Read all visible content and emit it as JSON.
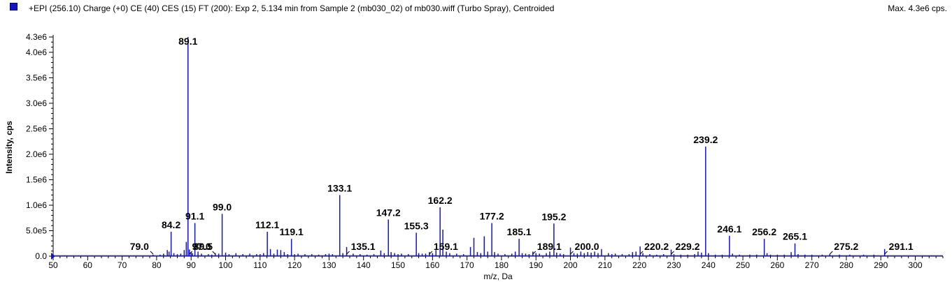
{
  "header": {
    "title": "+EPI (256.10) Charge (+0) CE (40) CES (15) FT (200): Exp 2, 5.134 min from Sample 2 (mb030_02) of mb030.wiff (Turbo Spray), Centroided",
    "max_label": "Max. 4.3e6 cps."
  },
  "colors": {
    "trace": "#1414c8",
    "axis": "#000000",
    "marker": "#1414c8"
  },
  "chart_data": {
    "type": "bar",
    "xlabel": "m/z, Da",
    "ylabel": "Intensity, cps",
    "xlim": [
      50,
      308
    ],
    "ylim": [
      0,
      4300000
    ],
    "grid": false,
    "x_ticks": [
      50,
      60,
      70,
      80,
      90,
      100,
      110,
      120,
      130,
      140,
      150,
      160,
      170,
      180,
      190,
      200,
      210,
      220,
      230,
      240,
      250,
      260,
      270,
      280,
      290,
      300
    ],
    "y_ticks": [
      {
        "value": 0,
        "label": "0.0"
      },
      {
        "value": 500000,
        "label": "5.0e5"
      },
      {
        "value": 1000000,
        "label": "1.0e6"
      },
      {
        "value": 1500000,
        "label": "1.5e6"
      },
      {
        "value": 2000000,
        "label": "2.0e6"
      },
      {
        "value": 2500000,
        "label": "2.5e6"
      },
      {
        "value": 3000000,
        "label": "3.0e6"
      },
      {
        "value": 3500000,
        "label": "3.5e6"
      },
      {
        "value": 4000000,
        "label": "4.0e6"
      },
      {
        "value": 4300000,
        "label": "4.3e6"
      }
    ],
    "peaks": [
      {
        "mz": 79.0,
        "intensity": 30000,
        "label": "79.0"
      },
      {
        "mz": 81.0,
        "intensity": 30000
      },
      {
        "mz": 82.0,
        "intensity": 50000
      },
      {
        "mz": 83.1,
        "intensity": 120000
      },
      {
        "mz": 83.6,
        "intensity": 90000
      },
      {
        "mz": 84.2,
        "intensity": 480000,
        "label": "84.2"
      },
      {
        "mz": 85.0,
        "intensity": 60000
      },
      {
        "mz": 86.0,
        "intensity": 40000
      },
      {
        "mz": 87.0,
        "intensity": 50000
      },
      {
        "mz": 88.0,
        "intensity": 120000
      },
      {
        "mz": 88.6,
        "intensity": 280000
      },
      {
        "mz": 89.1,
        "intensity": 4300000,
        "label": "89.1"
      },
      {
        "mz": 89.5,
        "intensity": 130000,
        "label": "89.5"
      },
      {
        "mz": 90.0,
        "intensity": 80000
      },
      {
        "mz": 90.4,
        "intensity": 60000
      },
      {
        "mz": 91.1,
        "intensity": 650000,
        "label": "91.1"
      },
      {
        "mz": 92.0,
        "intensity": 90000
      },
      {
        "mz": 93.0,
        "intensity": 50000
      },
      {
        "mz": 95.0,
        "intensity": 40000
      },
      {
        "mz": 96.0,
        "intensity": 30000
      },
      {
        "mz": 97.0,
        "intensity": 60000,
        "label": "97.0"
      },
      {
        "mz": 98.0,
        "intensity": 50000
      },
      {
        "mz": 99.0,
        "intensity": 830000,
        "label": "99.0"
      },
      {
        "mz": 100.0,
        "intensity": 70000
      },
      {
        "mz": 101.0,
        "intensity": 40000
      },
      {
        "mz": 103.0,
        "intensity": 60000
      },
      {
        "mz": 105.0,
        "intensity": 40000
      },
      {
        "mz": 107.0,
        "intensity": 50000
      },
      {
        "mz": 109.0,
        "intensity": 40000
      },
      {
        "mz": 110.0,
        "intensity": 40000
      },
      {
        "mz": 111.0,
        "intensity": 60000
      },
      {
        "mz": 112.1,
        "intensity": 480000,
        "label": "112.1"
      },
      {
        "mz": 113.0,
        "intensity": 140000
      },
      {
        "mz": 114.0,
        "intensity": 50000
      },
      {
        "mz": 115.0,
        "intensity": 130000
      },
      {
        "mz": 116.0,
        "intensity": 120000
      },
      {
        "mz": 117.0,
        "intensity": 80000
      },
      {
        "mz": 118.0,
        "intensity": 40000
      },
      {
        "mz": 119.1,
        "intensity": 340000,
        "label": "119.1"
      },
      {
        "mz": 120.0,
        "intensity": 40000
      },
      {
        "mz": 121.0,
        "intensity": 50000
      },
      {
        "mz": 123.0,
        "intensity": 40000
      },
      {
        "mz": 125.0,
        "intensity": 40000
      },
      {
        "mz": 127.0,
        "intensity": 30000
      },
      {
        "mz": 129.0,
        "intensity": 40000
      },
      {
        "mz": 130.0,
        "intensity": 50000
      },
      {
        "mz": 131.0,
        "intensity": 40000
      },
      {
        "mz": 133.1,
        "intensity": 1200000,
        "label": "133.1"
      },
      {
        "mz": 134.0,
        "intensity": 60000
      },
      {
        "mz": 135.1,
        "intensity": 180000,
        "label": "135.1"
      },
      {
        "mz": 137.0,
        "intensity": 50000
      },
      {
        "mz": 139.0,
        "intensity": 40000
      },
      {
        "mz": 141.0,
        "intensity": 30000
      },
      {
        "mz": 143.0,
        "intensity": 40000
      },
      {
        "mz": 145.0,
        "intensity": 110000
      },
      {
        "mz": 146.0,
        "intensity": 60000
      },
      {
        "mz": 147.2,
        "intensity": 720000,
        "label": "147.2"
      },
      {
        "mz": 148.0,
        "intensity": 80000
      },
      {
        "mz": 149.0,
        "intensity": 60000
      },
      {
        "mz": 150.0,
        "intensity": 40000
      },
      {
        "mz": 151.0,
        "intensity": 50000
      },
      {
        "mz": 153.0,
        "intensity": 40000
      },
      {
        "mz": 155.3,
        "intensity": 460000,
        "label": "155.3"
      },
      {
        "mz": 156.0,
        "intensity": 60000
      },
      {
        "mz": 157.0,
        "intensity": 50000
      },
      {
        "mz": 158.0,
        "intensity": 50000
      },
      {
        "mz": 159.1,
        "intensity": 80000,
        "label": "159.1"
      },
      {
        "mz": 160.0,
        "intensity": 60000
      },
      {
        "mz": 161.0,
        "intensity": 120000
      },
      {
        "mz": 162.2,
        "intensity": 960000,
        "label": "162.2"
      },
      {
        "mz": 163.0,
        "intensity": 520000
      },
      {
        "mz": 164.0,
        "intensity": 90000
      },
      {
        "mz": 165.0,
        "intensity": 60000
      },
      {
        "mz": 167.0,
        "intensity": 50000
      },
      {
        "mz": 169.0,
        "intensity": 40000
      },
      {
        "mz": 171.0,
        "intensity": 180000
      },
      {
        "mz": 172.0,
        "intensity": 360000
      },
      {
        "mz": 173.0,
        "intensity": 80000
      },
      {
        "mz": 174.0,
        "intensity": 60000
      },
      {
        "mz": 175.0,
        "intensity": 390000
      },
      {
        "mz": 176.0,
        "intensity": 90000
      },
      {
        "mz": 177.2,
        "intensity": 650000,
        "label": "177.2"
      },
      {
        "mz": 178.0,
        "intensity": 80000
      },
      {
        "mz": 179.0,
        "intensity": 50000
      },
      {
        "mz": 181.0,
        "intensity": 40000
      },
      {
        "mz": 183.0,
        "intensity": 50000
      },
      {
        "mz": 184.0,
        "intensity": 90000
      },
      {
        "mz": 185.1,
        "intensity": 340000,
        "label": "185.1"
      },
      {
        "mz": 186.0,
        "intensity": 60000
      },
      {
        "mz": 187.0,
        "intensity": 50000
      },
      {
        "mz": 188.0,
        "intensity": 40000
      },
      {
        "mz": 189.1,
        "intensity": 90000,
        "label": "189.1"
      },
      {
        "mz": 190.0,
        "intensity": 60000
      },
      {
        "mz": 191.0,
        "intensity": 50000
      },
      {
        "mz": 193.0,
        "intensity": 60000
      },
      {
        "mz": 194.0,
        "intensity": 90000
      },
      {
        "mz": 195.2,
        "intensity": 640000,
        "label": "195.2"
      },
      {
        "mz": 196.0,
        "intensity": 70000
      },
      {
        "mz": 197.0,
        "intensity": 50000
      },
      {
        "mz": 198.0,
        "intensity": 40000
      },
      {
        "mz": 200.0,
        "intensity": 170000,
        "label": "200.0"
      },
      {
        "mz": 201.0,
        "intensity": 60000
      },
      {
        "mz": 202.0,
        "intensity": 50000
      },
      {
        "mz": 203.0,
        "intensity": 90000
      },
      {
        "mz": 204.0,
        "intensity": 60000
      },
      {
        "mz": 205.0,
        "intensity": 80000
      },
      {
        "mz": 206.0,
        "intensity": 70000
      },
      {
        "mz": 207.0,
        "intensity": 90000
      },
      {
        "mz": 208.0,
        "intensity": 60000
      },
      {
        "mz": 209.0,
        "intensity": 140000
      },
      {
        "mz": 211.0,
        "intensity": 60000
      },
      {
        "mz": 212.0,
        "intensity": 40000
      },
      {
        "mz": 213.0,
        "intensity": 50000
      },
      {
        "mz": 215.0,
        "intensity": 40000
      },
      {
        "mz": 217.0,
        "intensity": 40000
      },
      {
        "mz": 218.0,
        "intensity": 80000
      },
      {
        "mz": 219.0,
        "intensity": 90000
      },
      {
        "mz": 220.2,
        "intensity": 190000,
        "label": "220.2"
      },
      {
        "mz": 221.0,
        "intensity": 60000
      },
      {
        "mz": 223.0,
        "intensity": 40000
      },
      {
        "mz": 225.0,
        "intensity": 30000
      },
      {
        "mz": 227.0,
        "intensity": 40000
      },
      {
        "mz": 229.2,
        "intensity": 130000,
        "label": "229.2"
      },
      {
        "mz": 230.0,
        "intensity": 40000
      },
      {
        "mz": 232.0,
        "intensity": 30000
      },
      {
        "mz": 234.0,
        "intensity": 30000
      },
      {
        "mz": 236.0,
        "intensity": 40000
      },
      {
        "mz": 237.0,
        "intensity": 90000
      },
      {
        "mz": 238.0,
        "intensity": 70000
      },
      {
        "mz": 239.2,
        "intensity": 2150000,
        "label": "239.2"
      },
      {
        "mz": 240.0,
        "intensity": 60000
      },
      {
        "mz": 242.0,
        "intensity": 30000
      },
      {
        "mz": 244.0,
        "intensity": 30000
      },
      {
        "mz": 246.1,
        "intensity": 400000,
        "label": "246.1"
      },
      {
        "mz": 247.0,
        "intensity": 50000
      },
      {
        "mz": 249.0,
        "intensity": 30000
      },
      {
        "mz": 252.0,
        "intensity": 30000
      },
      {
        "mz": 254.0,
        "intensity": 30000
      },
      {
        "mz": 256.2,
        "intensity": 340000,
        "label": "256.2"
      },
      {
        "mz": 257.0,
        "intensity": 60000
      },
      {
        "mz": 258.0,
        "intensity": 30000
      },
      {
        "mz": 260.0,
        "intensity": 30000
      },
      {
        "mz": 262.0,
        "intensity": 30000
      },
      {
        "mz": 264.0,
        "intensity": 80000
      },
      {
        "mz": 265.1,
        "intensity": 250000,
        "label": "265.1"
      },
      {
        "mz": 266.0,
        "intensity": 40000
      },
      {
        "mz": 268.0,
        "intensity": 30000
      },
      {
        "mz": 270.0,
        "intensity": 30000
      },
      {
        "mz": 273.0,
        "intensity": 30000
      },
      {
        "mz": 275.2,
        "intensity": 40000,
        "label": "275.2"
      },
      {
        "mz": 278.0,
        "intensity": 30000
      },
      {
        "mz": 281.0,
        "intensity": 30000
      },
      {
        "mz": 285.0,
        "intensity": 30000
      },
      {
        "mz": 288.0,
        "intensity": 30000
      },
      {
        "mz": 291.1,
        "intensity": 140000,
        "label": "291.1"
      }
    ]
  }
}
